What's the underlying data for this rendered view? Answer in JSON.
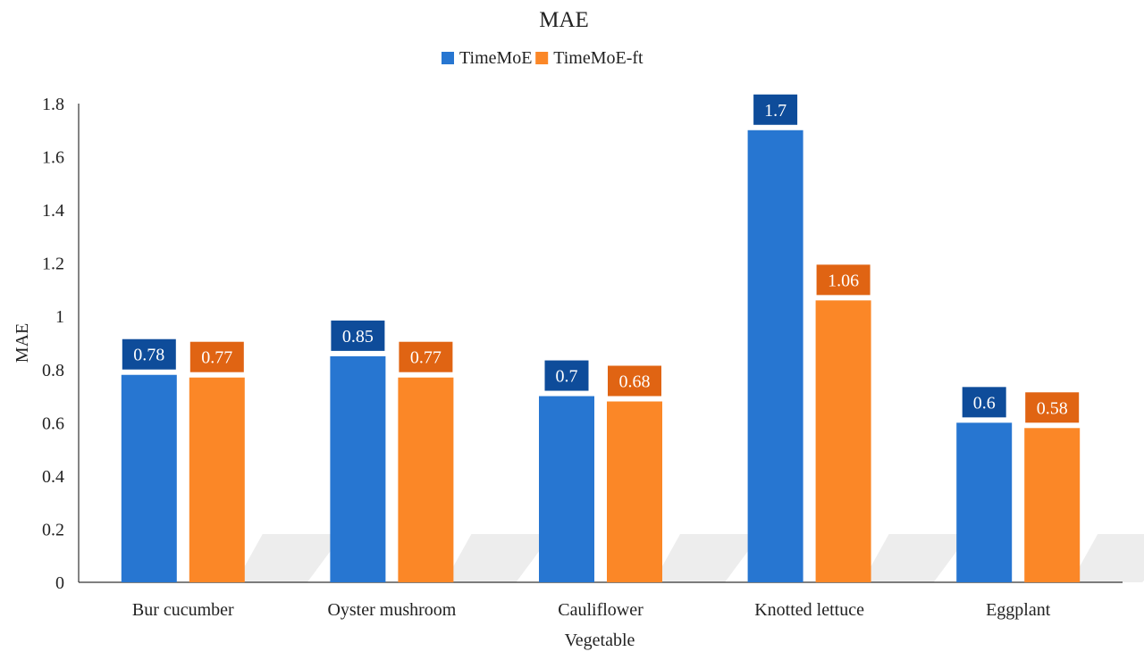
{
  "chart_data": {
    "type": "bar",
    "title": "MAE",
    "xlabel": "Vegetable",
    "ylabel": "MAE",
    "categories": [
      "Bur cucumber",
      "Oyster mushroom",
      "Cauliflower",
      "Knotted lettuce",
      "Eggplant"
    ],
    "series": [
      {
        "name": "TimeMoE",
        "color": "#2776D1",
        "label_color": "#0E4C9A",
        "values": [
          0.78,
          0.85,
          0.7,
          1.7,
          0.6
        ],
        "labels": [
          "0.78",
          "0.85",
          "0.7",
          "1.7",
          "0.6"
        ]
      },
      {
        "name": "TimeMoE-ft",
        "color": "#FB8727",
        "label_color": "#E06413",
        "values": [
          0.77,
          0.77,
          0.68,
          1.06,
          0.58
        ],
        "labels": [
          "0.77",
          "0.77",
          "0.68",
          "1.06",
          "0.58"
        ]
      }
    ],
    "ylim": [
      0,
      1.8
    ],
    "yticks": [
      "0",
      "0.2",
      "0.4",
      "0.6",
      "0.8",
      "1",
      "1.2",
      "1.4",
      "1.6",
      "1.8"
    ],
    "grid": false,
    "legend_position": "top-center",
    "data_labels": true
  }
}
